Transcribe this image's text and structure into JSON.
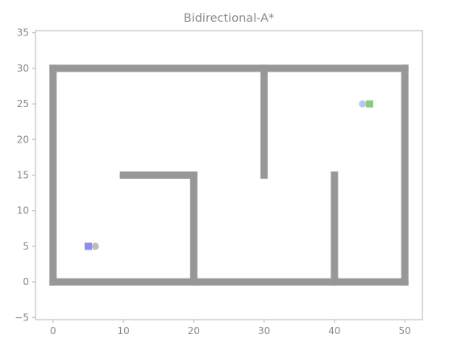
{
  "chart_data": {
    "type": "scatter",
    "title": "Bidirectional-A*",
    "xlabel": "",
    "ylabel": "",
    "xlim": [
      -2.5,
      52.5
    ],
    "ylim": [
      -5.3,
      35.3
    ],
    "xticks": [
      0,
      10,
      20,
      30,
      40,
      50
    ],
    "yticks": [
      -5,
      0,
      5,
      10,
      15,
      20,
      25,
      30,
      35
    ],
    "xtick_labels": [
      "0",
      "10",
      "20",
      "30",
      "40",
      "50"
    ],
    "ytick_labels": [
      "−5",
      "0",
      "5",
      "10",
      "15",
      "20",
      "25",
      "30",
      "35"
    ],
    "grid": false,
    "obstacles": [
      {
        "name": "bottom-wall",
        "x": [
          0,
          50
        ],
        "y": [
          0,
          0
        ]
      },
      {
        "name": "top-wall",
        "x": [
          0,
          50
        ],
        "y": [
          30,
          30
        ]
      },
      {
        "name": "left-wall",
        "x": [
          0,
          0
        ],
        "y": [
          0,
          30
        ]
      },
      {
        "name": "right-wall",
        "x": [
          50,
          50
        ],
        "y": [
          0,
          30
        ]
      },
      {
        "name": "inner-wall-1-horizontal",
        "x": [
          10,
          20
        ],
        "y": [
          15,
          15
        ]
      },
      {
        "name": "inner-wall-1-vertical",
        "x": [
          20,
          20
        ],
        "y": [
          0,
          15
        ]
      },
      {
        "name": "inner-wall-2",
        "x": [
          30,
          30
        ],
        "y": [
          15,
          30
        ]
      },
      {
        "name": "inner-wall-3",
        "x": [
          40,
          40
        ],
        "y": [
          0,
          15
        ]
      }
    ],
    "points": [
      {
        "name": "start",
        "x": 5,
        "y": 5,
        "marker": "square",
        "color": "#8c8cf2"
      },
      {
        "name": "start-neighbor",
        "x": 6,
        "y": 5,
        "marker": "circle",
        "color": "#bdbdbd"
      },
      {
        "name": "goal-neighbor",
        "x": 44,
        "y": 25,
        "marker": "circle",
        "color": "#b3c8ee"
      },
      {
        "name": "goal",
        "x": 45,
        "y": 25,
        "marker": "square",
        "color": "#8fca85"
      }
    ],
    "colors": {
      "obstacle": "#979797",
      "axes": "#b5b5b5",
      "text": "#8a8a8a"
    }
  }
}
